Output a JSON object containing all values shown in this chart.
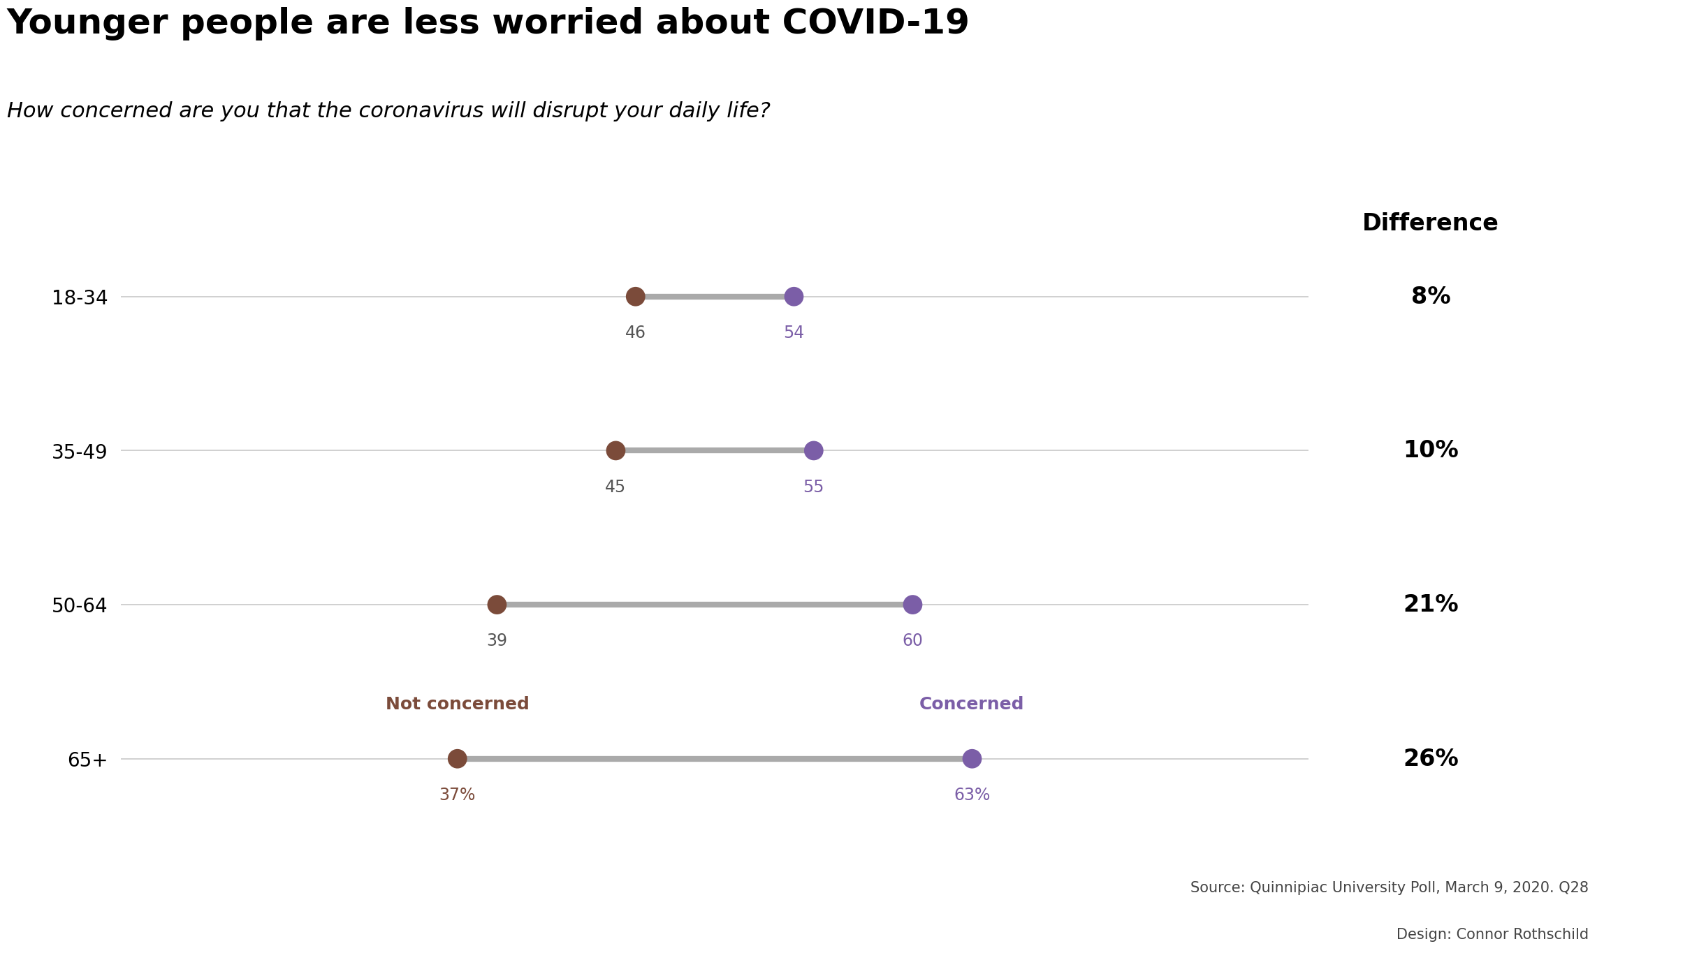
{
  "title": "Younger people are less worried about COVID-19",
  "subtitle": "How concerned are you that the coronavirus will disrupt your daily life?",
  "categories": [
    "65+",
    "50-64",
    "35-49",
    "18-34"
  ],
  "not_concerned": [
    37,
    39,
    45,
    46
  ],
  "concerned": [
    63,
    60,
    55,
    54
  ],
  "differences": [
    "26%",
    "21%",
    "10%",
    "8%"
  ],
  "not_concerned_color": "#7B4B3A",
  "concerned_color": "#7B5EA7",
  "line_color": "#AAAAAA",
  "connector_linewidth": 6,
  "dot_size": 400,
  "title_fontsize": 36,
  "subtitle_fontsize": 22,
  "label_fontsize": 17,
  "category_fontsize": 20,
  "diff_fontsize": 24,
  "diff_header_fontsize": 24,
  "source_fontsize": 15,
  "background_color": "#FFFFFF",
  "diff_box_color": "#B0B0B0",
  "xlabel_not_concerned": "Not concerned",
  "xlabel_concerned": "Concerned",
  "source_text": "Source: Quinnipiac University Poll, March 9, 2020. Q28",
  "design_text": "Design: Connor Rothschild",
  "xlim": [
    20,
    80
  ],
  "nc_label_colors": [
    "#7B4B3A",
    "#555555",
    "#555555",
    "#555555"
  ],
  "c_label_colors": [
    "#7B5EA7",
    "#7B5EA7",
    "#7B5EA7",
    "#7B5EA7"
  ],
  "nc_labels": [
    "37%",
    "39",
    "45",
    "46"
  ],
  "c_labels": [
    "63%",
    "60",
    "55",
    "54"
  ]
}
